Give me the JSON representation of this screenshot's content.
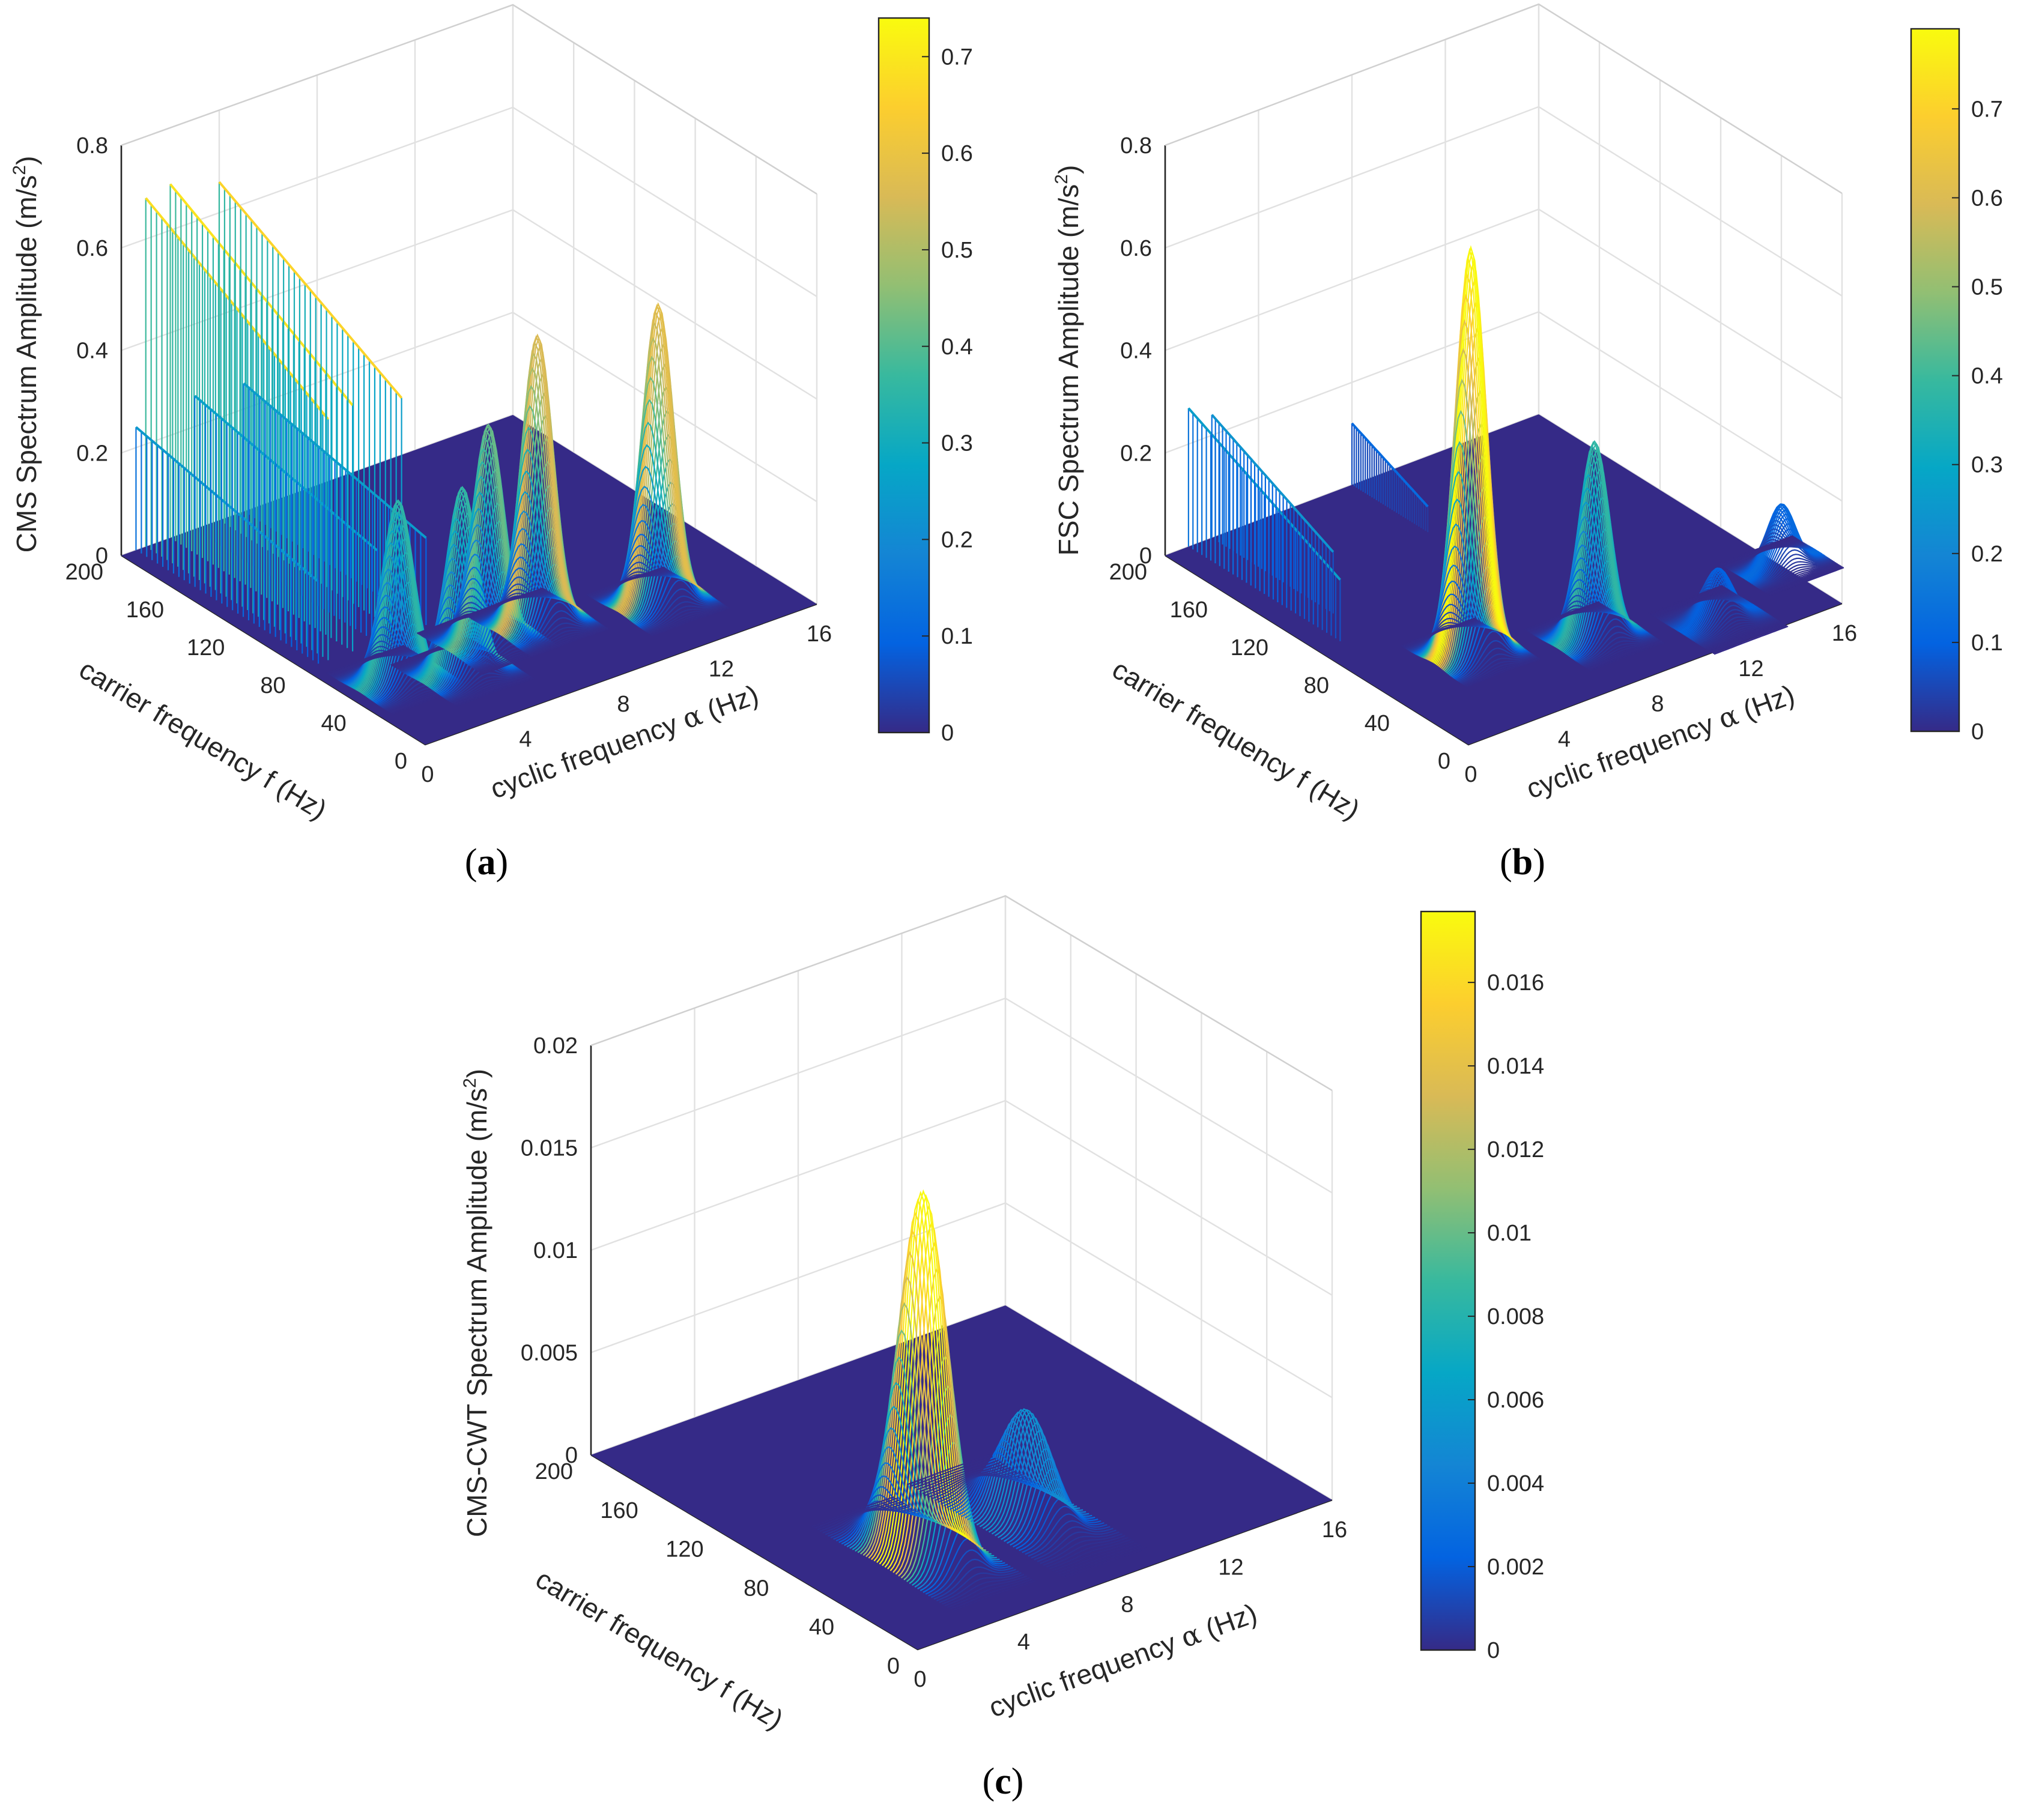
{
  "figure": {
    "panels": [
      {
        "letter": "a"
      },
      {
        "letter": "b"
      },
      {
        "letter": "c"
      }
    ]
  },
  "colormap": [
    "#352a87",
    "#0363e1",
    "#1485d4",
    "#06a7c6",
    "#38b99e",
    "#92bf73",
    "#d9ba56",
    "#fcce2e",
    "#f9fb0e"
  ],
  "chart_data": [
    {
      "type": "surface3d",
      "panel": "a",
      "zlabel": "CMS Spectrum Amplitude (m/s²)",
      "zlabel_main": "CMS Spectrum Amplitude (m/s",
      "zlabel_exp": "2",
      "zlabel_close": ")",
      "xlabel": "carrier frequency f (Hz)",
      "ylabel": "cyclic frequency α (Hz)",
      "ylabel_pre": "cyclic frequency ",
      "ylabel_sym": "α",
      "ylabel_post": " (Hz)",
      "xlim": [
        0,
        200
      ],
      "ylim": [
        0,
        16
      ],
      "zlim": [
        0,
        0.8
      ],
      "xticks": [
        "0",
        "40",
        "80",
        "120",
        "160",
        "200"
      ],
      "yticks": [
        "0",
        "4",
        "8",
        "12",
        "16"
      ],
      "zticks": [
        "0",
        "0.2",
        "0.4",
        "0.6",
        "0.8"
      ],
      "clim": [
        0,
        0.74
      ],
      "cticks": [
        "0",
        "0.1",
        "0.2",
        "0.3",
        "0.4",
        "0.5",
        "0.6",
        "0.7"
      ],
      "ridges": [
        {
          "alpha": 1.0,
          "f_start": 200,
          "f_end": 80,
          "z_start": 0.68,
          "z_end": 0.47
        },
        {
          "alpha": 2.0,
          "f_start": 200,
          "f_end": 80,
          "z_start": 0.69,
          "z_end": 0.48
        },
        {
          "alpha": 4.0,
          "f_start": 200,
          "f_end": 80,
          "z_start": 0.66,
          "z_end": 0.46
        },
        {
          "alpha": 0.6,
          "f_start": 200,
          "f_end": 80,
          "z_start": 0.24,
          "z_end": 0.16
        },
        {
          "alpha": 3.0,
          "f_start": 200,
          "f_end": 80,
          "z_start": 0.26,
          "z_end": 0.18
        },
        {
          "alpha": 5.0,
          "f_start": 200,
          "f_end": 80,
          "z_start": 0.25,
          "z_end": 0.17
        }
      ],
      "peaks": [
        {
          "alpha": 2.0,
          "f": 50,
          "z": 0.35,
          "width": 9
        },
        {
          "alpha": 4.0,
          "f": 40,
          "z": 0.36,
          "width": 9
        },
        {
          "alpha": 6.0,
          "f": 55,
          "z": 0.42,
          "width": 9
        },
        {
          "alpha": 8.0,
          "f": 55,
          "z": 0.56,
          "width": 9
        },
        {
          "alpha": 12.0,
          "f": 40,
          "z": 0.58,
          "width": 9
        }
      ]
    },
    {
      "type": "surface3d",
      "panel": "b",
      "zlabel": "FSC Spectrum Amplitude (m/s²)",
      "zlabel_main": "FSC Spectrum Amplitude (m/s",
      "zlabel_exp": "2",
      "zlabel_close": ")",
      "xlabel": "carrier frequency f (Hz)",
      "ylabel": "cyclic frequency α (Hz)",
      "ylabel_pre": "cyclic frequency ",
      "ylabel_sym": "α",
      "ylabel_post": " (Hz)",
      "xlim": [
        0,
        200
      ],
      "ylim": [
        0,
        16
      ],
      "zlim": [
        0,
        0.8
      ],
      "xticks": [
        "0",
        "40",
        "80",
        "120",
        "160",
        "200"
      ],
      "yticks": [
        "0",
        "4",
        "8",
        "12",
        "16"
      ],
      "zticks": [
        "0",
        "0.2",
        "0.4",
        "0.6",
        "0.8"
      ],
      "clim": [
        0,
        0.79
      ],
      "cticks": [
        "0",
        "0.1",
        "0.2",
        "0.3",
        "0.4",
        "0.5",
        "0.6",
        "0.7"
      ],
      "ridges": [
        {
          "alpha": 1.0,
          "f_start": 200,
          "f_end": 100,
          "z_start": 0.27,
          "z_end": 0.12
        },
        {
          "alpha": 2.0,
          "f_start": 200,
          "f_end": 120,
          "z_start": 0.24,
          "z_end": 0.12
        },
        {
          "alpha": 8.0,
          "f_start": 200,
          "f_end": 150,
          "z_start": 0.12,
          "z_end": 0.05
        }
      ],
      "peaks": [
        {
          "alpha": 4.0,
          "f": 60,
          "z": 0.79,
          "width": 9
        },
        {
          "alpha": 8.0,
          "f": 40,
          "z": 0.38,
          "width": 9
        },
        {
          "alpha": 12.0,
          "f": 20,
          "z": 0.1,
          "width": 9
        },
        {
          "alpha": 16.0,
          "f": 40,
          "z": 0.12,
          "width": 7
        }
      ]
    },
    {
      "type": "surface3d",
      "panel": "c",
      "zlabel": "CMS-CWT Spectrum Amplitude (m/s²)",
      "zlabel_main": "CMS-CWT Spectrum Amplitude (m/s",
      "zlabel_exp": "2",
      "zlabel_close": ")",
      "xlabel": "carrier frequency f (Hz)",
      "ylabel": "cyclic frequency α (Hz)",
      "ylabel_pre": "cyclic frequency ",
      "ylabel_sym": "α",
      "ylabel_post": " (Hz)",
      "xlim": [
        0,
        200
      ],
      "ylim": [
        0,
        16
      ],
      "zlim": [
        0,
        0.02
      ],
      "xticks": [
        "0",
        "40",
        "80",
        "120",
        "160",
        "200"
      ],
      "yticks": [
        "0",
        "4",
        "8",
        "12",
        "16"
      ],
      "zticks": [
        "0",
        "0.005",
        "0.01",
        "0.015",
        "0.02"
      ],
      "clim": [
        0,
        0.0177
      ],
      "cticks": [
        "0",
        "0.002",
        "0.004",
        "0.006",
        "0.008",
        "0.01",
        "0.012",
        "0.014",
        "0.016"
      ],
      "ridges": [],
      "peaks": [
        {
          "alpha": 4.0,
          "f": 60,
          "z": 0.0177,
          "width": 18
        },
        {
          "alpha": 8.0,
          "f": 60,
          "z": 0.0052,
          "width": 20
        }
      ]
    }
  ]
}
